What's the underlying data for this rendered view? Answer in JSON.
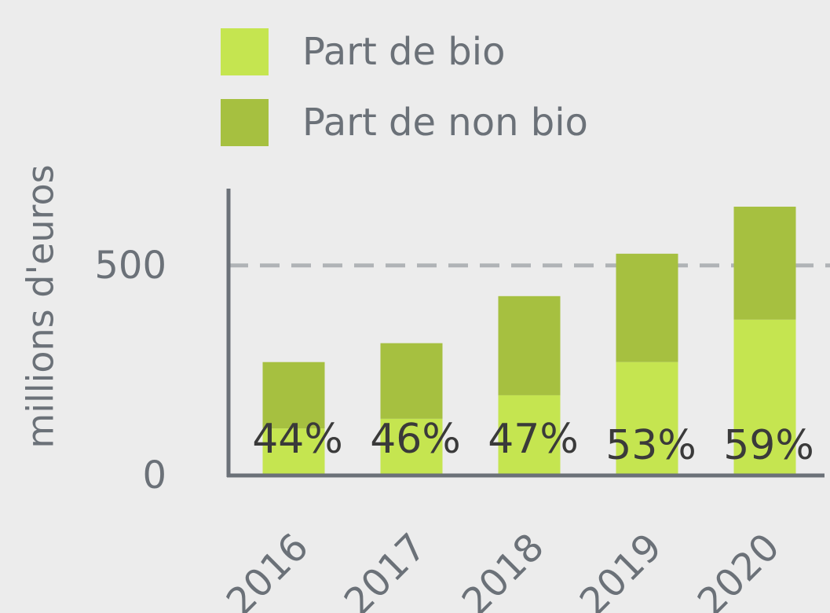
{
  "chart_data": {
    "type": "stacked_bar",
    "y_label": "millions d'euros",
    "categories": [
      "2016",
      "2017",
      "2018",
      "2019",
      "2020"
    ],
    "series": [
      {
        "name": "Part de bio",
        "color": "#c5e550",
        "values": [
          112,
          135,
          191,
          270,
          371
        ]
      },
      {
        "name": "Part de non bio",
        "color": "#a6c040",
        "values": [
          158,
          180,
          236,
          258,
          269
        ]
      }
    ],
    "annotations": [
      "44%",
      "46%",
      "47%",
      "53%",
      "59%"
    ],
    "ylim": [
      0,
      683
    ],
    "yticks": [
      0,
      500
    ],
    "grid": true
  }
}
